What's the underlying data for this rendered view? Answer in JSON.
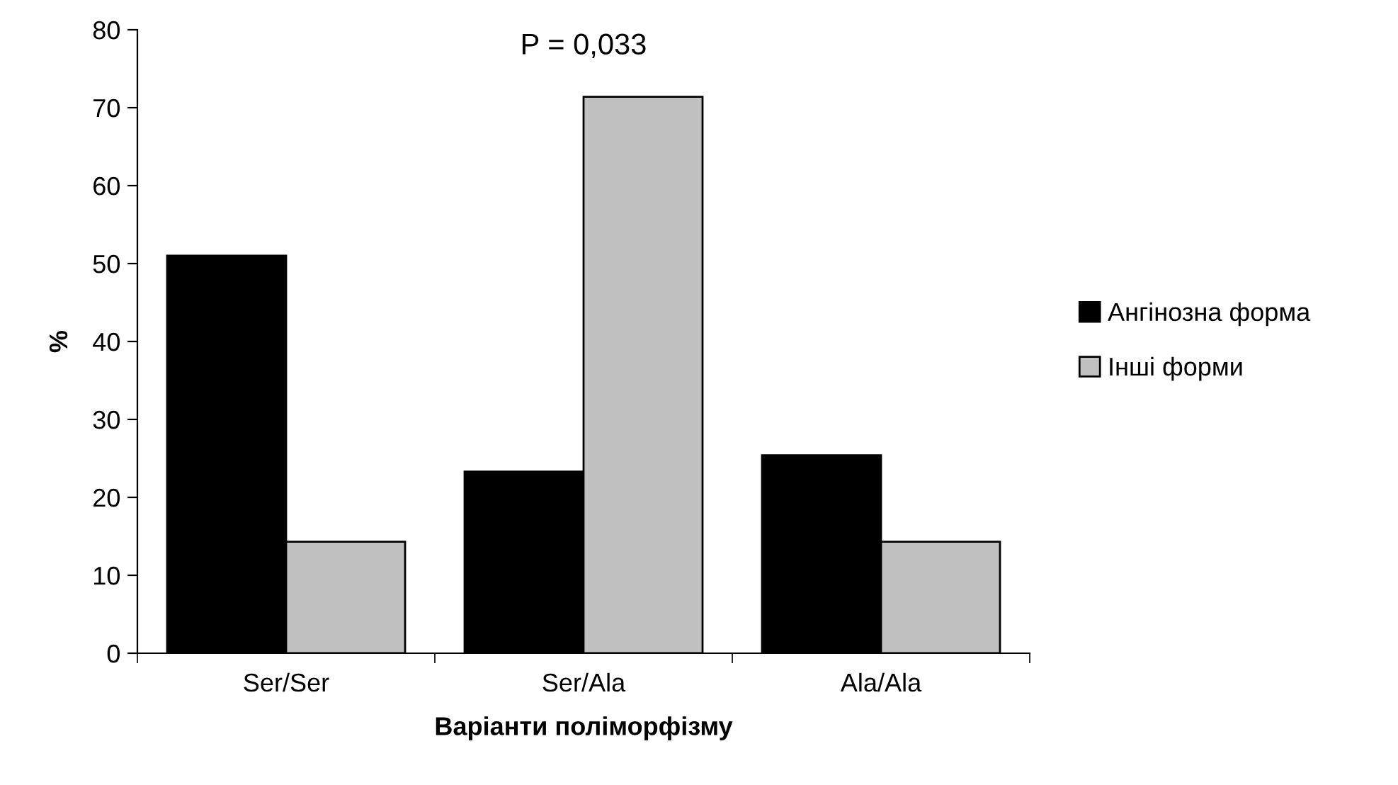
{
  "chart_data": {
    "type": "bar",
    "xlabel": "Варіанти поліморфізму",
    "ylabel": "%",
    "categories": [
      "Ser/Ser",
      "Ser/Ala",
      "Ala/Ala"
    ],
    "series": [
      {
        "name": "Ангінозна форма",
        "color": "#000000",
        "values": [
          51,
          23.3,
          25.4
        ]
      },
      {
        "name": "Інші форми",
        "color": "#c0c0c0",
        "values": [
          14.3,
          71.4,
          14.3
        ]
      }
    ],
    "ylim": [
      0,
      80
    ],
    "yticks": [
      0,
      10,
      20,
      30,
      40,
      50,
      60,
      70,
      80
    ],
    "annotations": [
      "P = 0,033"
    ],
    "grid": false,
    "legend": "right"
  }
}
